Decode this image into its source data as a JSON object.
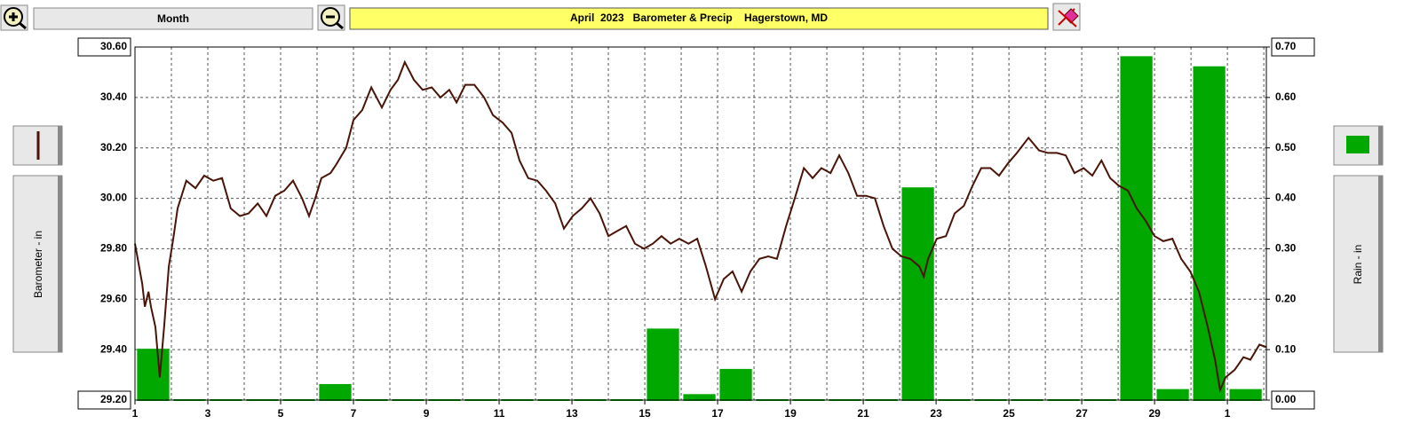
{
  "chart_data": {
    "type": "line",
    "title": "April  2023   Barometer & Precip    Hagerstown, MD",
    "period_label": "Month",
    "ylabel": "Barometer - in",
    "y2label": "Rain - in",
    "xlim": [
      1,
      32.07
    ],
    "xticks": [
      1,
      3,
      5,
      7,
      9,
      11,
      13,
      15,
      17,
      19,
      21,
      23,
      25,
      27,
      29,
      {
        "value": 31,
        "label": "1"
      }
    ],
    "ylim": [
      29.2,
      30.6
    ],
    "yticks": [
      {
        "value": 29.2,
        "label": "29.20"
      },
      {
        "value": 29.4,
        "label": "29.40"
      },
      {
        "value": 29.6,
        "label": "29.60"
      },
      {
        "value": 29.8,
        "label": "29.80"
      },
      {
        "value": 30.0,
        "label": "30.00"
      },
      {
        "value": 30.2,
        "label": "30.20"
      },
      {
        "value": 30.4,
        "label": "30.40"
      },
      {
        "value": 30.6,
        "label": "30.60"
      }
    ],
    "y2lim": [
      0,
      0.7
    ],
    "y2ticks": [
      {
        "value": 0,
        "label": "0.00"
      },
      {
        "value": 0.1,
        "label": "0.10"
      },
      {
        "value": 0.2,
        "label": "0.20"
      },
      {
        "value": 0.3,
        "label": "0.30"
      },
      {
        "value": 0.4,
        "label": "0.40"
      },
      {
        "value": 0.5,
        "label": "0.50"
      },
      {
        "value": 0.6,
        "label": "0.60"
      },
      {
        "value": 0.7,
        "label": "0.70"
      }
    ],
    "grid": true,
    "series": [
      {
        "type": "bar",
        "axis": "y2",
        "color": "#00a800",
        "x": [
          1,
          2,
          3,
          4,
          5,
          6,
          7,
          8,
          9,
          10,
          11,
          12,
          13,
          14,
          15,
          16,
          17,
          18,
          19,
          20,
          21,
          22,
          23,
          24,
          25,
          26,
          27,
          28,
          29,
          30,
          31
        ],
        "values": [
          0.1,
          0,
          0,
          0,
          0,
          0.03,
          0,
          0,
          0,
          0,
          0,
          0,
          0,
          0,
          0.14,
          0.01,
          0.06,
          0,
          0,
          0,
          0,
          0.42,
          0,
          0,
          0,
          0,
          0,
          0.68,
          0.02,
          0.66,
          0.02
        ]
      },
      {
        "type": "line",
        "color": "#4a1408",
        "x": [
          1.0,
          1.2,
          1.27,
          1.37,
          1.44,
          1.56,
          1.68,
          1.8,
          1.93,
          2.05,
          2.17,
          2.41,
          2.66,
          2.9,
          3.15,
          3.39,
          3.63,
          3.88,
          4.12,
          4.37,
          4.61,
          4.85,
          5.1,
          5.34,
          5.59,
          5.78,
          5.95,
          6.12,
          6.37,
          6.51,
          6.8,
          7.0,
          7.24,
          7.49,
          7.78,
          8.02,
          8.22,
          8.41,
          8.66,
          8.9,
          9.15,
          9.39,
          9.63,
          9.83,
          10.07,
          10.32,
          10.59,
          10.83,
          11.1,
          11.34,
          11.56,
          11.8,
          12.05,
          12.29,
          12.54,
          12.78,
          13.02,
          13.27,
          13.51,
          13.76,
          14.0,
          14.24,
          14.49,
          14.73,
          14.98,
          15.22,
          15.46,
          15.71,
          15.95,
          16.2,
          16.44,
          16.68,
          16.93,
          17.17,
          17.41,
          17.66,
          17.9,
          18.15,
          18.39,
          18.63,
          18.88,
          19.12,
          19.37,
          19.61,
          19.85,
          20.1,
          20.34,
          20.59,
          20.83,
          21.07,
          21.32,
          21.56,
          21.8,
          22.05,
          22.29,
          22.54,
          22.66,
          22.78,
          23.02,
          23.27,
          23.51,
          23.76,
          24.0,
          24.24,
          24.49,
          24.73,
          24.98,
          25.22,
          25.54,
          25.83,
          26.07,
          26.32,
          26.56,
          26.8,
          27.05,
          27.29,
          27.54,
          27.78,
          28.02,
          28.27,
          28.51,
          28.76,
          29.0,
          29.24,
          29.49,
          29.73,
          29.98,
          30.22,
          30.46,
          30.66,
          30.8,
          30.95,
          31.2,
          31.44,
          31.63,
          31.88,
          32.07
        ],
        "values": [
          29.82,
          29.66,
          29.57,
          29.63,
          29.57,
          29.49,
          29.29,
          29.49,
          29.73,
          29.84,
          29.96,
          30.07,
          30.04,
          30.09,
          30.07,
          30.08,
          29.96,
          29.93,
          29.94,
          29.98,
          29.93,
          30.01,
          30.03,
          30.07,
          30.0,
          29.93,
          30.0,
          30.08,
          30.1,
          30.13,
          30.2,
          30.31,
          30.35,
          30.44,
          30.36,
          30.43,
          30.47,
          30.54,
          30.47,
          30.43,
          30.44,
          30.4,
          30.43,
          30.38,
          30.45,
          30.45,
          30.4,
          30.33,
          30.3,
          30.26,
          30.15,
          30.08,
          30.07,
          30.03,
          29.98,
          29.88,
          29.93,
          29.96,
          30.0,
          29.94,
          29.85,
          29.87,
          29.89,
          29.82,
          29.8,
          29.82,
          29.85,
          29.82,
          29.84,
          29.82,
          29.84,
          29.73,
          29.6,
          29.68,
          29.71,
          29.63,
          29.71,
          29.76,
          29.77,
          29.76,
          29.89,
          30.0,
          30.12,
          30.08,
          30.12,
          30.1,
          30.17,
          30.1,
          30.01,
          30.01,
          30.0,
          29.89,
          29.8,
          29.77,
          29.76,
          29.73,
          29.69,
          29.76,
          29.84,
          29.85,
          29.94,
          29.97,
          30.05,
          30.12,
          30.12,
          30.09,
          30.14,
          30.18,
          30.24,
          30.19,
          30.18,
          30.18,
          30.17,
          30.1,
          30.12,
          30.09,
          30.15,
          30.08,
          30.05,
          30.03,
          29.96,
          29.91,
          29.85,
          29.83,
          29.84,
          29.76,
          29.71,
          29.63,
          29.49,
          29.36,
          29.24,
          29.29,
          29.32,
          29.37,
          29.36,
          29.42,
          29.41
        ]
      }
    ]
  }
}
